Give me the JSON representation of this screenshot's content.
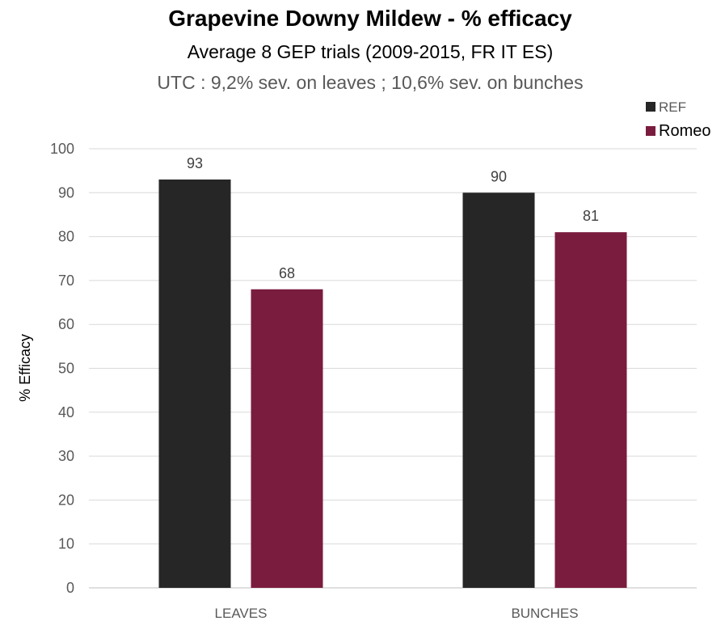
{
  "chart_data": {
    "type": "bar",
    "title": "Grapevine Downy Mildew - % efficacy",
    "subtitle": "Average 8 GEP trials (2009-2015, FR IT ES)",
    "subtitle2": "UTC : 9,2% sev. on leaves ; 10,6% sev. on bunches",
    "xlabel": "",
    "ylabel": "% Efficacy",
    "ylim": [
      0,
      100
    ],
    "yticks": [
      0,
      10,
      20,
      30,
      40,
      50,
      60,
      70,
      80,
      90,
      100
    ],
    "grid": true,
    "legend_position": "top-right",
    "categories": [
      "LEAVES",
      "BUNCHES"
    ],
    "series": [
      {
        "name": "REF",
        "color": "#262626",
        "values": [
          93,
          90
        ]
      },
      {
        "name": "Romeo",
        "color": "#7a1c3e",
        "values": [
          68,
          81
        ]
      }
    ]
  }
}
